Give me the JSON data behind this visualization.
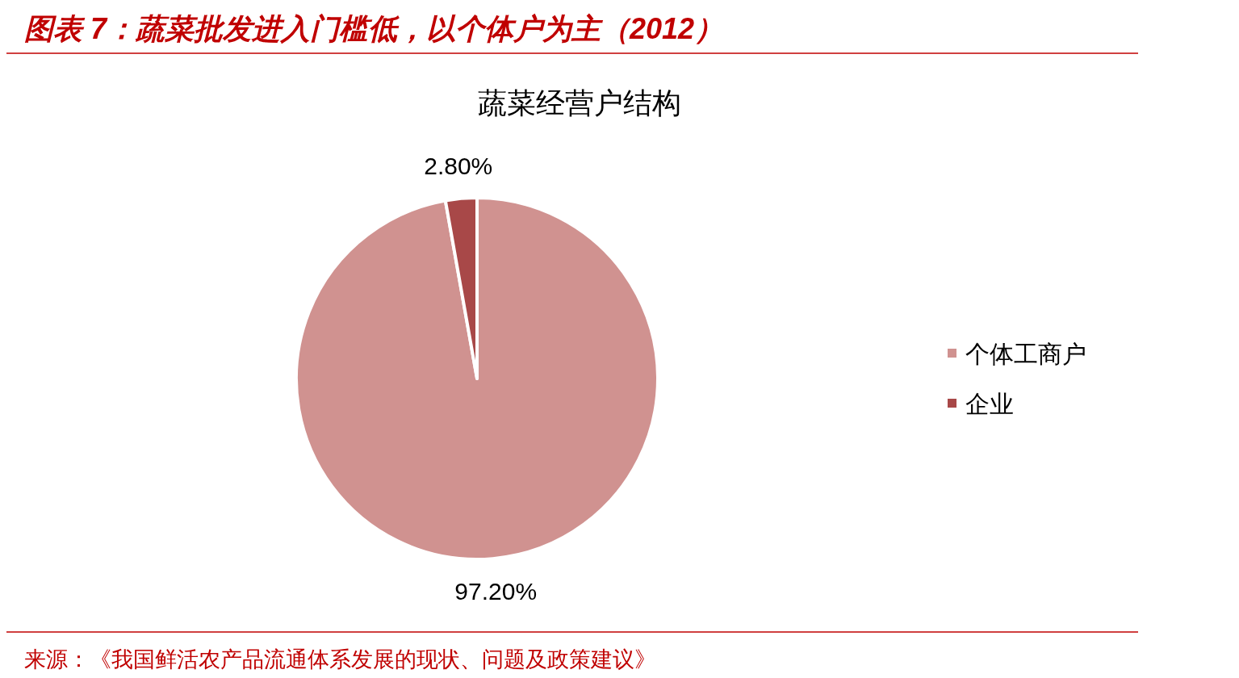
{
  "chart_data": {
    "type": "pie",
    "title": "图表 7：蔬菜批发进入门槛低，以个体户为主（2012）",
    "subtitle": "蔬菜经营户结构",
    "categories": [
      "个体工商户",
      "企业"
    ],
    "values": [
      97.2,
      2.8
    ],
    "value_labels": [
      "97.20%",
      "2.80%"
    ],
    "colors": [
      "#d09290",
      "#a84848"
    ],
    "legend": "right",
    "annotations": [
      "来源：《我国鲜活农产品流通体系发展的现状、问题及政策建议》"
    ]
  }
}
